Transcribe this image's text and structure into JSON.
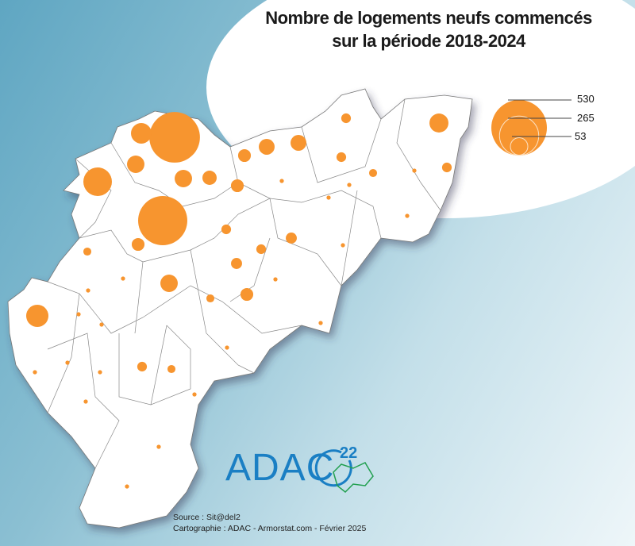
{
  "title_line1": "Nombre de logements neufs commencés",
  "title_line2": "sur la période 2018-2024",
  "legend": {
    "values": [
      530,
      265,
      53
    ],
    "labels": [
      "530",
      "265",
      "53"
    ]
  },
  "colors": {
    "circle": "#f7952f",
    "territory": "#ffffff",
    "border": "#777777",
    "logo_blue": "#1a7fc4",
    "logo_green": "#22a050"
  },
  "circle_values": [
    440,
    415,
    140,
    73,
    52,
    52,
    35,
    43,
    43,
    28,
    28,
    85,
    52,
    62,
    16,
    28,
    28,
    21,
    21,
    16,
    16,
    16,
    11,
    16,
    16,
    11,
    11,
    11,
    3,
    3,
    3,
    3,
    3,
    3,
    3,
    3,
    3,
    3,
    3,
    3,
    3,
    3,
    3,
    3,
    3,
    3,
    3,
    3
  ],
  "logo": {
    "text": "ADAC",
    "superscript": "22"
  },
  "source": "Source : Sit@del2",
  "credits": "Cartographie : ADAC - Armorstat.com - Février 2025"
}
